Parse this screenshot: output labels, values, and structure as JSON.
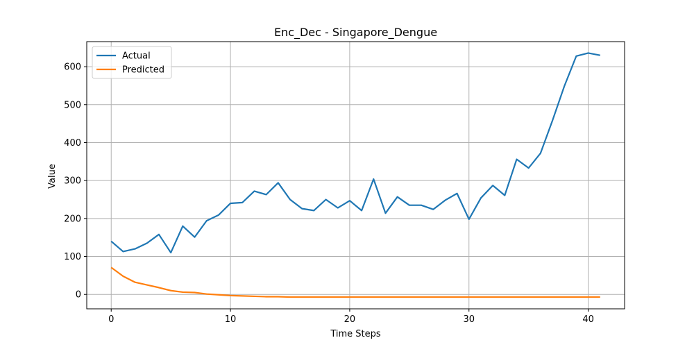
{
  "chart_data": {
    "type": "line",
    "title": "Enc_Dec - Singapore_Dengue",
    "xlabel": "Time Steps",
    "ylabel": "Value",
    "xlim": [
      -2.05,
      43.05
    ],
    "ylim": [
      -38,
      666
    ],
    "xticks": [
      0,
      10,
      20,
      30,
      40
    ],
    "yticks": [
      0,
      100,
      200,
      300,
      400,
      500,
      600
    ],
    "grid": true,
    "legend_position": "upper-left",
    "x": [
      0,
      1,
      2,
      3,
      4,
      5,
      6,
      7,
      8,
      9,
      10,
      11,
      12,
      13,
      14,
      15,
      16,
      17,
      18,
      19,
      20,
      21,
      22,
      23,
      24,
      25,
      26,
      27,
      28,
      29,
      30,
      31,
      32,
      33,
      34,
      35,
      36,
      37,
      38,
      39,
      40,
      41
    ],
    "series": [
      {
        "name": "Actual",
        "color": "#1f77b4",
        "values": [
          140,
          113,
          120,
          135,
          158,
          110,
          180,
          151,
          194,
          209,
          240,
          242,
          272,
          263,
          294,
          250,
          226,
          221,
          250,
          228,
          247,
          221,
          304,
          214,
          257,
          235,
          235,
          224,
          248,
          266,
          198,
          254,
          287,
          261,
          356,
          333,
          372,
          458,
          549,
          628,
          636,
          630
        ]
      },
      {
        "name": "Predicted",
        "color": "#ff7f0e",
        "values": [
          71,
          48,
          32,
          25,
          18,
          10,
          6,
          5,
          1,
          -1,
          -3,
          -4,
          -5,
          -6,
          -6,
          -7,
          -7,
          -7,
          -7,
          -7,
          -7,
          -7,
          -7,
          -7,
          -7,
          -7,
          -7,
          -7,
          -7,
          -7,
          -7,
          -7,
          -7,
          -7,
          -7,
          -7,
          -7,
          -7,
          -7,
          -7,
          -7,
          -7
        ]
      }
    ]
  }
}
